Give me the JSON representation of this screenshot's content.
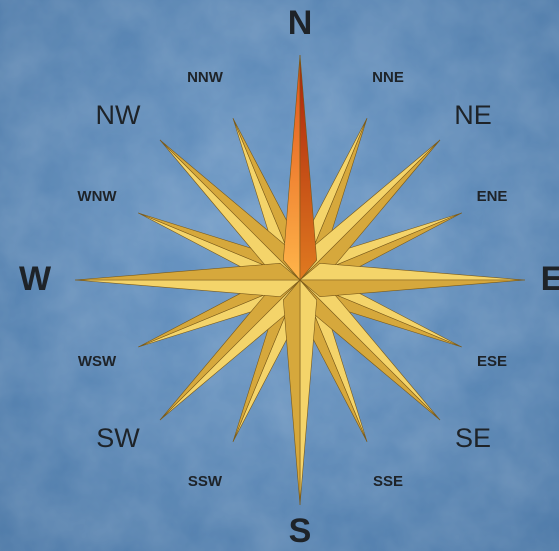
{
  "directions": [
    {
      "label": "N"
    },
    {
      "label": "NNE"
    },
    {
      "label": "NE"
    },
    {
      "label": "ENE"
    },
    {
      "label": "E"
    },
    {
      "label": "ESE"
    },
    {
      "label": "SE"
    },
    {
      "label": "SSE"
    },
    {
      "label": "S"
    },
    {
      "label": "SSW"
    },
    {
      "label": "SW"
    },
    {
      "label": "WSW"
    },
    {
      "label": "W"
    },
    {
      "label": "WNW"
    },
    {
      "label": "NW"
    },
    {
      "label": "NNW"
    }
  ]
}
